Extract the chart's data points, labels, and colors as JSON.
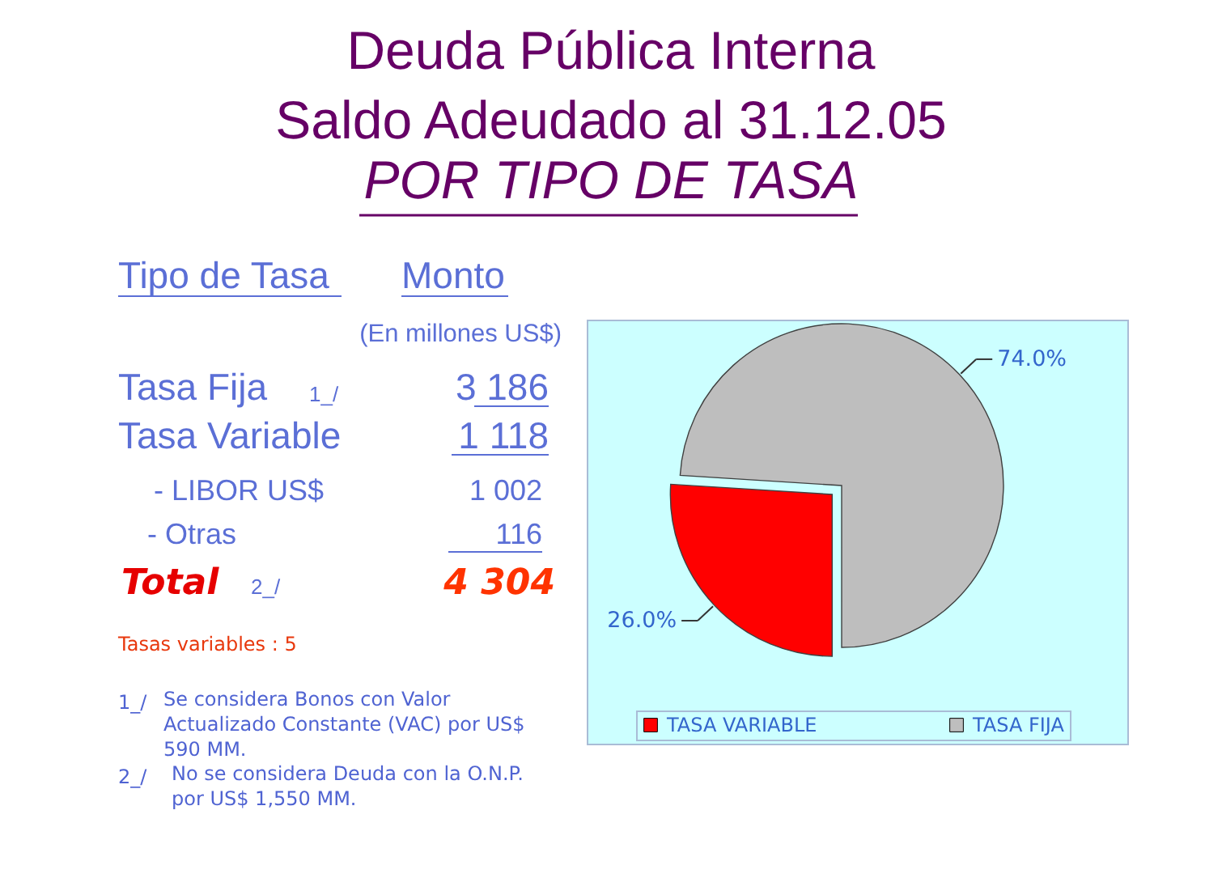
{
  "chart_data": {
    "type": "pie",
    "title": "Deuda Pública Interna\nSaldo Adeudado al 31.12.05",
    "subtitle": "POR TIPO DE TASA",
    "categories": [
      "TASA VARIABLE",
      "TASA FIJA"
    ],
    "values": [
      26.0,
      74.0
    ],
    "colors": [
      "#ff0000",
      "#bebebe"
    ],
    "value_labels": [
      "26.0%",
      "74.0%"
    ],
    "legend": "bottom",
    "annotations": [
      "Tipo de Tasa",
      "Monto",
      "(En millones US$)",
      "Tasa Fija",
      "1_/",
      "3 186",
      "Tasa Variable",
      "1 118",
      "- LIBOR US$",
      "1 002",
      "- Otras",
      "116",
      "Total",
      "2_/",
      "4 304",
      "Tasas variables : 5",
      "1_/ Se considera Bonos con Valor Actualizado Constante (VAC) por US$ 590 MM.",
      "2_/ No se considera Deuda con la O.N.P. por US$ 1,550 MM."
    ]
  }
}
